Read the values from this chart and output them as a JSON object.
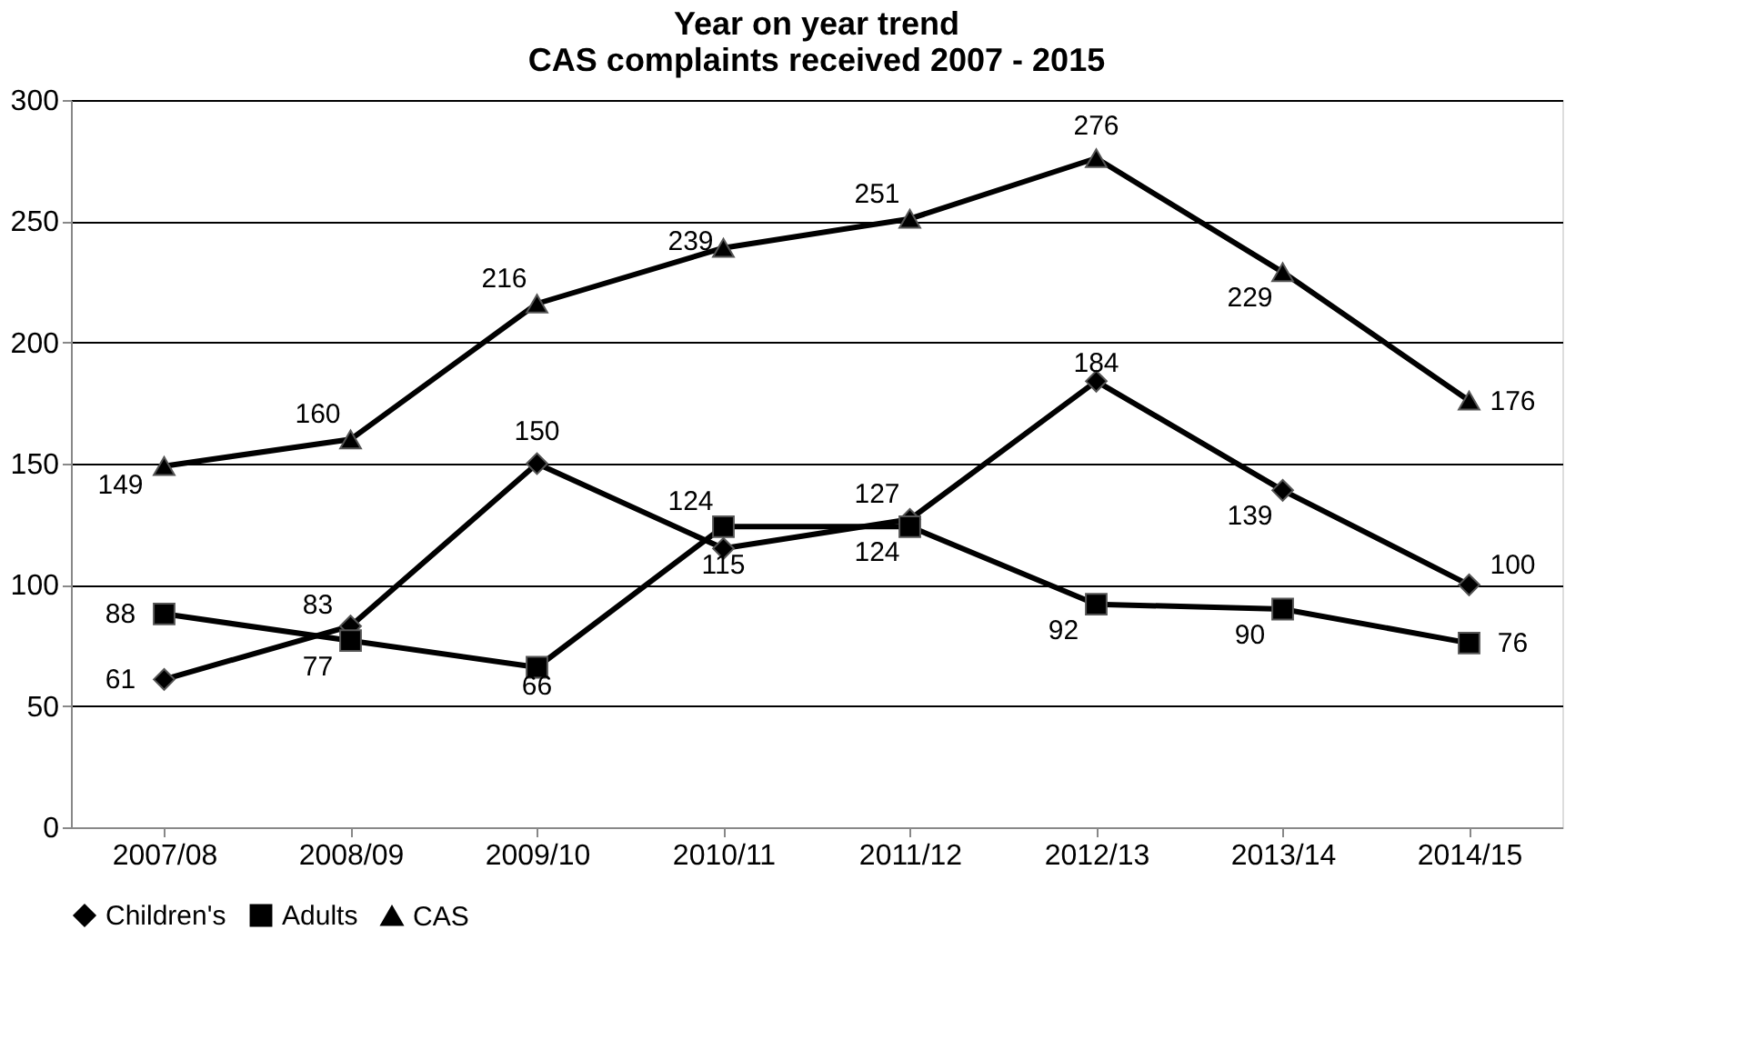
{
  "chart_data": {
    "type": "line",
    "title": "Year on year trend\nCAS complaints received 2007 - 2015",
    "categories": [
      "2007/08",
      "2008/09",
      "2009/10",
      "2010/11",
      "2011/12",
      "2012/13",
      "2013/14",
      "2014/15"
    ],
    "series": [
      {
        "name": "Children's",
        "color": "#000000",
        "marker": "diamond",
        "values": [
          61,
          83,
          150,
          115,
          127,
          184,
          139,
          100
        ]
      },
      {
        "name": "Adults",
        "color": "#000000",
        "marker": "square",
        "values": [
          88,
          77,
          66,
          124,
          124,
          92,
          90,
          76
        ]
      },
      {
        "name": "CAS",
        "color": "#000000",
        "marker": "triangle",
        "values": [
          149,
          160,
          216,
          239,
          251,
          276,
          229,
          176
        ]
      }
    ],
    "ylim": [
      0,
      300
    ],
    "yticks": [
      0,
      50,
      100,
      150,
      200,
      250,
      300
    ],
    "grid": "y",
    "legend": "bottom",
    "data_labels": true,
    "line_style": "solid"
  }
}
